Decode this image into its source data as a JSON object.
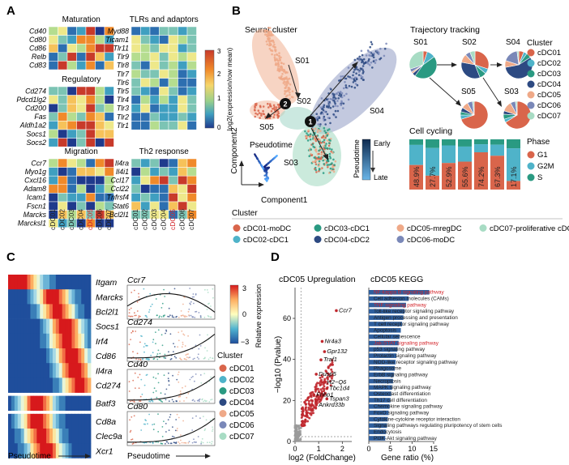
{
  "panel_letters": {
    "a": "A",
    "b": "B",
    "c": "C",
    "d": "D"
  },
  "colors": {
    "cDC01": "#d9654b",
    "cDC02": "#4fb3c9",
    "cDC03": "#2a9a82",
    "cDC04": "#2d4a82",
    "cDC05": "#efa988",
    "cDC06": "#7a88b8",
    "cDC07": "#a8dcc4",
    "highlight_red": "#d4242a",
    "kegg_bar": "#2f5f9e"
  },
  "clusters": [
    "cDC01",
    "cDC02",
    "cDC03",
    "cDC04",
    "cDC05",
    "cDC06",
    "cDC07"
  ],
  "panelA": {
    "groups": [
      {
        "title": "Maturation",
        "genes": [
          "Cd40",
          "Cd80",
          "Cd86",
          "Relb",
          "Cd83"
        ]
      },
      {
        "title": "Regulatory",
        "genes": [
          "Cd274",
          "Pdcd1lg2",
          "Cd200",
          "Fas",
          "Aldh1a2",
          "Socs1",
          "Socs2"
        ]
      },
      {
        "title": "Migration",
        "genes": [
          "Ccr7",
          "Myo1g",
          "Cxcl16",
          "Adam8",
          "Icam1",
          "Fscn1",
          "Marcks",
          "Marcksl1"
        ]
      },
      {
        "title": "TLRs and adaptors",
        "genes": [
          "Myd88",
          "Ticam1",
          "Tlr11",
          "Tlr9",
          "Tlr8",
          "Tlr7",
          "Tlr6",
          "Tlr5",
          "Tlr4",
          "Tlr3",
          "Tlr2",
          "Tlr1"
        ]
      },
      {
        "title": "Th2 response",
        "genes": [
          "Il4ra",
          "Il4i1",
          "Ccl17",
          "Ccl22",
          "Tnfrsf4",
          "Stat6",
          "Bcl2l1"
        ]
      }
    ],
    "legend_title": "log2(expression/row mean)",
    "legend_ticks": [
      "3",
      "2",
      "1",
      "0"
    ]
  },
  "panelB": {
    "seurat_title": "Seurat cluster",
    "states": [
      "S01",
      "S02",
      "S03",
      "S04",
      "S05"
    ],
    "branch_points": [
      "1",
      "2"
    ],
    "axis_x": "Component1",
    "axis_y": "Component2",
    "pseudotime_label": "Pseudotime",
    "pseudotime_scale": "Pseudotime",
    "early": "Early",
    "late": "Late",
    "trajectory_title": "Trajectory tracking",
    "cluster_legend_title": "Cluster",
    "cell_cycling_title": "Cell cycling",
    "phase_title": "Phase",
    "phases": [
      "G1",
      "G2M",
      "S"
    ],
    "phase_colors": [
      "#d9654b",
      "#4fb3c9",
      "#2a9a82"
    ],
    "cycling_g1": [
      "48.9%",
      "27.7%",
      "52.9%",
      "55.6%",
      "74.2%",
      "67.3%",
      "17.1%"
    ],
    "cluster_bottom_title": "Cluster",
    "cluster_bottom_labels": [
      "cDC01-moDC",
      "cDC03-cDC1",
      "cDC05-mregDC",
      "cDC07-proliferative cDC",
      "cDC02-cDC1",
      "cDC04-cDC2",
      "cDC06-moDC"
    ]
  },
  "panelC": {
    "genes": [
      "Itgam",
      "Marcks",
      "Bcl2l1",
      "Socs1",
      "Irf4",
      "Cd86",
      "Il4ra",
      "Cd274",
      "Batf3",
      "Cd8a",
      "Clec9a",
      "Xcr1"
    ],
    "scatter_genes": [
      "Ccr7",
      "Cd274",
      "Cd40",
      "Cd80"
    ],
    "pseudotime_left": "Pseudotime",
    "pseudotime_right": "Pseudotime",
    "legend_title": "Relative expression",
    "legend_ticks": [
      "3",
      "0",
      "−3"
    ],
    "cluster_title": "Cluster"
  },
  "panelD": {
    "volcano_title": "cDC05 Upregulation",
    "volcano_ylabel": "−log10 (Pvalue)",
    "volcano_xlabel": "log2 (FoldChange)",
    "volcano_yticks": [
      "0",
      "20",
      "40",
      "60"
    ],
    "volcano_xticks": [
      "0",
      "1",
      "2"
    ],
    "volcano_genes": [
      "Ccr7",
      "Nr4a3",
      "Gpr132",
      "Traf1",
      "Dusp5",
      "H2−Q6",
      "Tbc1d4",
      "Fnbp1",
      "Tspan3",
      "Ankrd33b"
    ],
    "kegg_title": "cDC05 KEGG",
    "kegg_xlabel": "Gene ratio (%)",
    "kegg_xticks": [
      "0",
      "5",
      "10",
      "15"
    ],
    "pathways": [
      {
        "name": "NF-kappa B signaling pathway",
        "ratio": 14.0,
        "highlight": true
      },
      {
        "name": "Cell adhesion molecules (CAMs)",
        "ratio": 9.2,
        "highlight": false
      },
      {
        "name": "TNF signaling pathway",
        "ratio": 8.6,
        "highlight": true
      },
      {
        "name": "Toll-like receptor signaling pathway",
        "ratio": 8.3,
        "highlight": false
      },
      {
        "name": "Antigen processing and presentation",
        "ratio": 8.0,
        "highlight": false
      },
      {
        "name": "T cell receptor signaling pathway",
        "ratio": 7.7,
        "highlight": false
      },
      {
        "name": "Apoptosis",
        "ratio": 7.4,
        "highlight": false
      },
      {
        "name": "Cellular senescence",
        "ratio": 7.1,
        "highlight": false
      },
      {
        "name": "Jak-STAT signaling pathway",
        "ratio": 6.9,
        "highlight": true
      },
      {
        "name": "p53 signaling pathway",
        "ratio": 6.6,
        "highlight": false
      },
      {
        "name": "Prolactin signaling pathway",
        "ratio": 6.4,
        "highlight": false
      },
      {
        "name": "NOD-like receptor signaling pathway",
        "ratio": 6.2,
        "highlight": false
      },
      {
        "name": "Phagosome",
        "ratio": 6.0,
        "highlight": false
      },
      {
        "name": "ErbB signaling pathway",
        "ratio": 5.8,
        "highlight": false
      },
      {
        "name": "Necroptosis",
        "ratio": 5.6,
        "highlight": false
      },
      {
        "name": "MAPK signaling pathway",
        "ratio": 5.4,
        "highlight": false
      },
      {
        "name": "Osteoclast differentiation",
        "ratio": 5.2,
        "highlight": false
      },
      {
        "name": "Th17 cell differentiation",
        "ratio": 5.0,
        "highlight": false
      },
      {
        "name": "Chemokine signaling pathway",
        "ratio": 4.8,
        "highlight": false
      },
      {
        "name": "FoxO signaling pathway",
        "ratio": 4.6,
        "highlight": false
      },
      {
        "name": "Cytokine-cytokine receptor interaction",
        "ratio": 4.4,
        "highlight": false
      },
      {
        "name": "Signaling pathways regulating pluripotency of stem cells",
        "ratio": 4.2,
        "highlight": false
      },
      {
        "name": "Endocytosis",
        "ratio": 4.0,
        "highlight": false
      },
      {
        "name": "PI3K-Akt signaling pathway",
        "ratio": 3.8,
        "highlight": false
      }
    ]
  }
}
